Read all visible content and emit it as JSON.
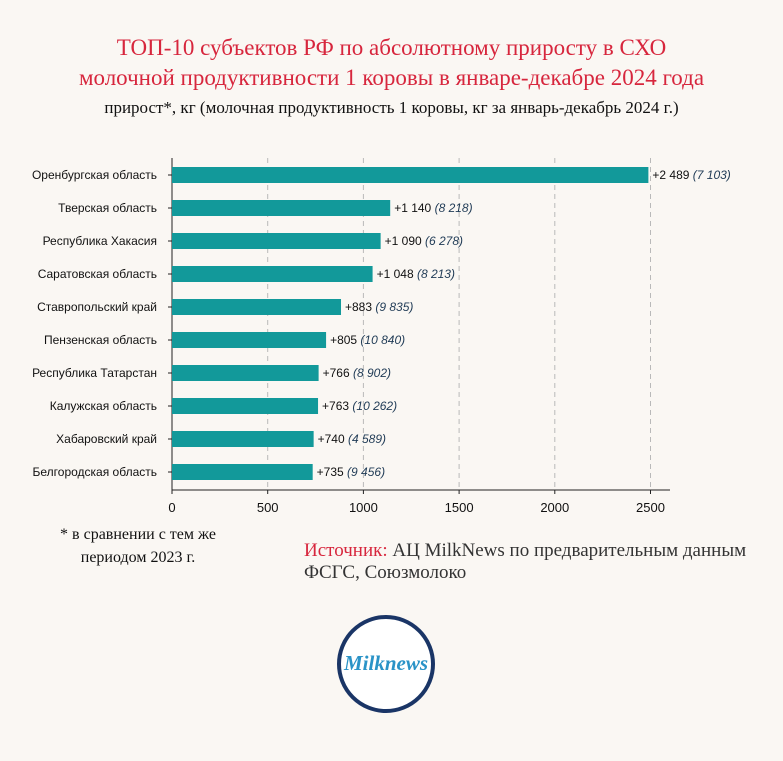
{
  "header": {
    "title_line1": "ТОП-10 субъектов РФ по абсолютному приросту в СХО",
    "title_line2": "молочной продуктивности 1 коровы в январе-декабре 2024 года",
    "subtitle": "прирост*, кг (молочная продуктивность 1 коровы, кг за январь-декабрь 2024 г.)"
  },
  "chart_data": {
    "type": "bar",
    "orientation": "horizontal",
    "categories": [
      "Оренбургская область",
      "Тверская область",
      "Республика Хакасия",
      "Саратовская область",
      "Ставропольский край",
      "Пензенская область",
      "Республика Татарстан",
      "Калужская область",
      "Хабаровский край",
      "Белгородская область"
    ],
    "values": [
      2489,
      1140,
      1090,
      1048,
      883,
      805,
      766,
      763,
      740,
      735
    ],
    "value_labels": [
      "+2 489",
      "+1 140",
      "+1 090",
      "+1 048",
      "+883",
      "+805",
      "+766",
      "+763",
      "+740",
      "+735"
    ],
    "secondary_labels": [
      "(7 103)",
      "(8 218)",
      "(6 278)",
      "(8 213)",
      "(9 835)",
      "(10 840)",
      "(8 902)",
      "(10 262)",
      "(4 589)",
      "(9 456)"
    ],
    "xlim": [
      0,
      2600
    ],
    "xticks": [
      0,
      500,
      1000,
      1500,
      2000,
      2500
    ],
    "grid": "vertical dashed",
    "bar_color": "#12999a"
  },
  "footnote": "* в сравнении с тем же периодом 2023 г.",
  "source": {
    "label": "Источник:",
    "text": " АЦ MilkNews по предварительным данным ФСГС, Союзмолоко"
  },
  "logo": {
    "text": "Milknews"
  }
}
